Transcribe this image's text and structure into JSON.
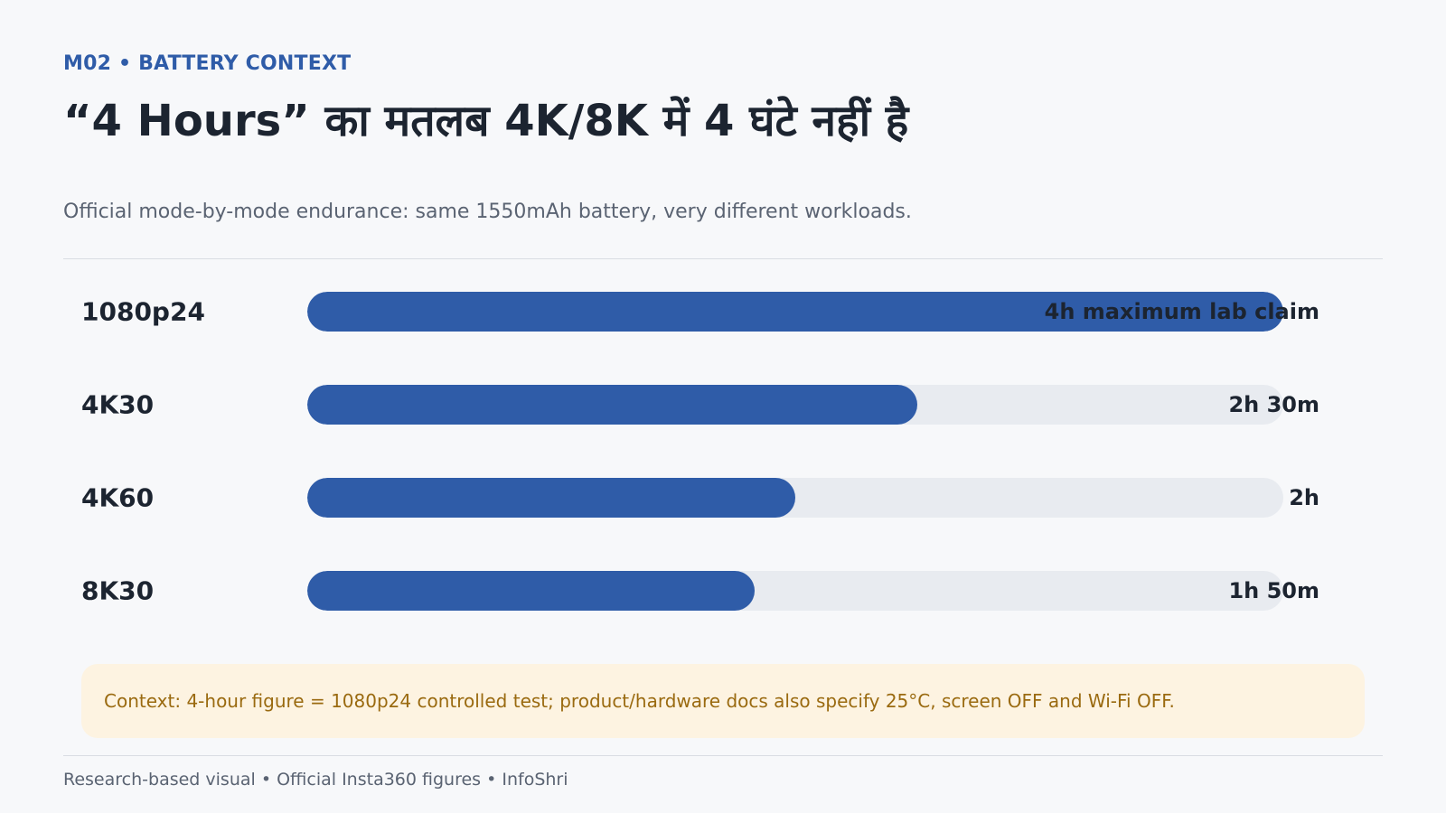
{
  "header": {
    "eyebrow": "M02 • BATTERY CONTEXT",
    "title": "“4 Hours” का मतलब 4K/8K में 4 घंटे नहीं है",
    "subtitle": "Official mode-by-mode endurance: same 1550mAh battery, very different workloads."
  },
  "colors": {
    "accent": "#2f5ca8",
    "track": "#e8ebf0",
    "context_bg": "#fdf3e1",
    "context_text": "#9a6a10"
  },
  "chart_data": {
    "type": "bar",
    "orientation": "horizontal",
    "categories": [
      "1080p24",
      "4K30",
      "4K60",
      "8K30"
    ],
    "values_minutes": [
      240,
      150,
      120,
      110
    ],
    "value_labels": [
      "4h maximum lab claim",
      "2h 30m",
      "2h",
      "1h 50m"
    ],
    "xlim": [
      0,
      240
    ],
    "grid": false,
    "title": "",
    "xlabel": "",
    "ylabel": ""
  },
  "context": {
    "text": "Context: 4-hour figure = 1080p24 controlled test; product/hardware docs also specify 25°C, screen OFF and Wi-Fi OFF."
  },
  "footer": {
    "text": "Research-based visual • Official Insta360 figures • InfoShri"
  }
}
